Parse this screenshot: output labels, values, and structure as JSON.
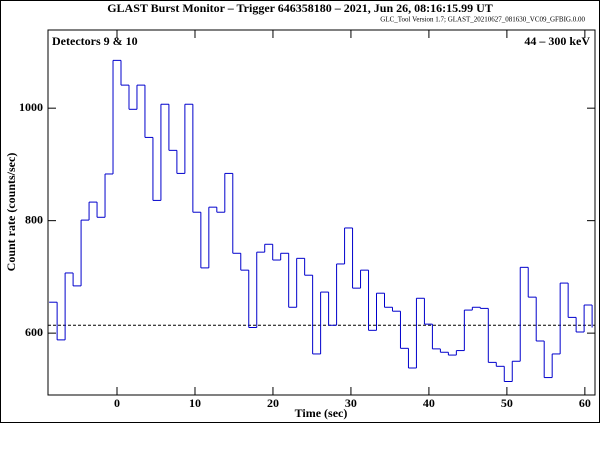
{
  "chart_data": {
    "type": "histogram",
    "title": "GLAST Burst Monitor  –  Trigger 646358180  –  2021, Jun 26, 08:16:15.99 UT",
    "subtitle": "GLC_Tool Version 1.7; GLAST_20210627_081630_VC09_GFBIG.0.00",
    "annotations": [
      "Detectors 9 & 10",
      "44 – 300 keV"
    ],
    "xlabel": "Time (sec)",
    "ylabel": "Count rate (counts/sec)",
    "color": "#0000cc",
    "bins": [
      -8.704,
      -7.68,
      -6.656,
      -5.632,
      -4.608,
      -3.584,
      -2.56,
      -1.536,
      -0.512,
      0.512,
      1.536,
      2.56,
      3.584,
      4.608,
      5.632,
      6.656,
      7.68,
      8.704,
      9.728,
      10.752,
      11.776,
      12.8,
      13.824,
      14.848,
      15.872,
      16.896,
      17.92,
      18.944,
      19.968,
      20.992,
      22.016,
      23.04,
      24.064,
      25.088,
      26.112,
      27.136,
      28.16,
      29.184,
      30.208,
      31.232,
      32.256,
      33.28,
      34.304,
      35.328,
      36.352,
      37.376,
      38.4,
      39.424,
      40.448,
      41.472,
      42.496,
      43.52,
      44.544,
      45.568,
      46.592,
      47.616,
      48.64,
      49.664,
      50.688,
      51.712,
      52.736,
      53.76,
      54.784,
      55.808,
      56.832,
      57.856,
      58.88,
      59.904,
      60.928
    ],
    "values": [
      655,
      588,
      707,
      684,
      801,
      833,
      806,
      883,
      1085,
      1041,
      998,
      1041,
      948,
      836,
      1007,
      925,
      884,
      1007,
      815,
      716,
      824,
      815,
      884,
      742,
      712,
      610,
      744,
      758,
      730,
      742,
      646,
      733,
      703,
      563,
      673,
      614,
      723,
      787,
      680,
      712,
      605,
      671,
      646,
      639,
      573,
      538,
      662,
      616,
      572,
      566,
      561,
      569,
      641,
      646,
      644,
      548,
      541,
      514,
      550,
      717,
      664,
      586,
      521,
      563,
      689,
      628,
      602,
      650,
      610
    ],
    "background_level": 614,
    "xlim": [
      -8.85,
      61.3
    ],
    "ylim": [
      490,
      1139
    ],
    "xticks": [
      0,
      10,
      20,
      30,
      40,
      50,
      60
    ],
    "yticks": [
      600,
      800,
      1000
    ]
  }
}
